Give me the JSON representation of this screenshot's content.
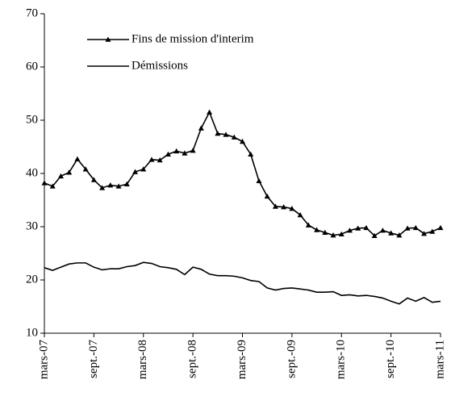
{
  "chart_data": {
    "type": "line",
    "categories": [
      "mars-07",
      null,
      null,
      null,
      null,
      null,
      "sept.-07",
      null,
      null,
      null,
      null,
      null,
      "mars-08",
      null,
      null,
      null,
      null,
      null,
      "sept.-08",
      null,
      null,
      null,
      null,
      null,
      "mars-09",
      null,
      null,
      null,
      null,
      null,
      "sept.-09",
      null,
      null,
      null,
      null,
      null,
      "mars-10",
      null,
      null,
      null,
      null,
      null,
      "sept.-10",
      null,
      null,
      null,
      null,
      null,
      "mars-11"
    ],
    "series": [
      {
        "name": "Fins de mission d'interim",
        "color": "#000000",
        "marker": "triangle",
        "values": [
          38.2,
          37.6,
          39.5,
          40.2,
          42.7,
          40.8,
          38.8,
          37.3,
          37.8,
          37.6,
          38,
          40.3,
          40.8,
          42.6,
          42.5,
          43.6,
          44.2,
          43.8,
          44.3,
          48.5,
          51.5,
          47.5,
          47.3,
          46.8,
          46,
          43.6,
          38.6,
          35.7,
          33.8,
          33.7,
          33.4,
          32.2,
          30.3,
          29.4,
          28.9,
          28.4,
          28.6,
          29.3,
          29.7,
          29.8,
          28.3,
          29.3,
          28.8,
          28.4,
          29.7,
          29.8,
          28.7,
          29.1,
          29.8
        ]
      },
      {
        "name": "Démissions",
        "color": "#000000",
        "values": [
          22.3,
          21.8,
          22.4,
          23.0,
          23.2,
          23.2,
          22.4,
          21.9,
          22.1,
          22.1,
          22.5,
          22.7,
          23.3,
          23.1,
          22.5,
          22.3,
          22.0,
          21.0,
          22.4,
          22.0,
          21.1,
          20.8,
          20.8,
          20.7,
          20.4,
          19.9,
          19.7,
          18.5,
          18.1,
          18.4,
          18.5,
          18.3,
          18.1,
          17.7,
          17.7,
          17.8,
          17.1,
          17.2,
          17.0,
          17.1,
          16.9,
          16.6,
          16.0,
          15.5,
          16.6,
          16.0,
          16.7,
          15.8,
          16.0
        ]
      }
    ],
    "ylim": [
      10,
      70
    ],
    "yticks": [
      10,
      20,
      30,
      40,
      50,
      60,
      70
    ],
    "grid": false,
    "legend": "upper left"
  }
}
